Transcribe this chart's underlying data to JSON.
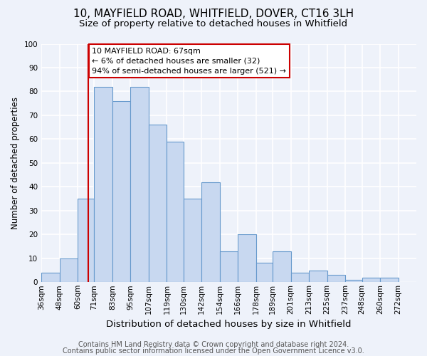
{
  "title": "10, MAYFIELD ROAD, WHITFIELD, DOVER, CT16 3LH",
  "subtitle": "Size of property relative to detached houses in Whitfield",
  "xlabel": "Distribution of detached houses by size in Whitfield",
  "ylabel": "Number of detached properties",
  "bin_labels": [
    "36sqm",
    "48sqm",
    "60sqm",
    "71sqm",
    "83sqm",
    "95sqm",
    "107sqm",
    "119sqm",
    "130sqm",
    "142sqm",
    "154sqm",
    "166sqm",
    "178sqm",
    "189sqm",
    "201sqm",
    "213sqm",
    "225sqm",
    "237sqm",
    "248sqm",
    "260sqm",
    "272sqm"
  ],
  "bar_heights": [
    4,
    10,
    35,
    82,
    76,
    82,
    66,
    59,
    35,
    42,
    13,
    20,
    8,
    13,
    4,
    5,
    3,
    1,
    2,
    2,
    0
  ],
  "bar_color": "#c8d8f0",
  "bar_edge_color": "#6699cc",
  "property_line_x": 67,
  "bin_edges": [
    36,
    48,
    60,
    71,
    83,
    95,
    107,
    119,
    130,
    142,
    154,
    166,
    178,
    189,
    201,
    213,
    225,
    237,
    248,
    260,
    272
  ],
  "annotation_line1": "10 MAYFIELD ROAD: 67sqm",
  "annotation_line2": "← 6% of detached houses are smaller (32)",
  "annotation_line3": "94% of semi-detached houses are larger (521) →",
  "red_line_color": "#cc0000",
  "annotation_box_edge_color": "#cc0000",
  "footer_line1": "Contains HM Land Registry data © Crown copyright and database right 2024.",
  "footer_line2": "Contains public sector information licensed under the Open Government Licence v3.0.",
  "ylim": [
    0,
    100
  ],
  "background_color": "#eef2fa",
  "plot_background_color": "#eef2fa",
  "grid_color": "#ffffff",
  "title_fontsize": 11,
  "subtitle_fontsize": 9.5,
  "xlabel_fontsize": 9.5,
  "ylabel_fontsize": 8.5,
  "tick_fontsize": 7.5,
  "annotation_fontsize": 8,
  "footer_fontsize": 7
}
